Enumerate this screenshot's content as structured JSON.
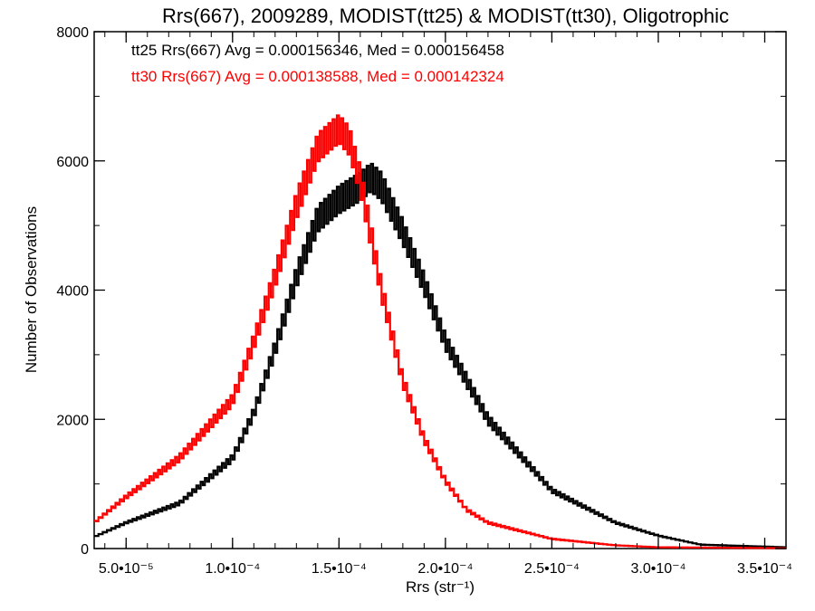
{
  "chart_data": {
    "type": "histogram",
    "title": "Rrs(667), 2009289, MODIST(tt25) & MODIST(tt30), Oligotrophic",
    "xlabel": "Rrs (str⁻¹)",
    "ylabel": "Number of Observations",
    "xlim": [
      3.5e-05,
      0.00036
    ],
    "ylim": [
      0,
      8000
    ],
    "x_ticks": [
      {
        "value": 5e-05,
        "label": "5.0•10⁻⁵"
      },
      {
        "value": 0.0001,
        "label": "1.0•10⁻⁴"
      },
      {
        "value": 0.00015,
        "label": "1.5•10⁻⁴"
      },
      {
        "value": 0.0002,
        "label": "2.0•10⁻⁴"
      },
      {
        "value": 0.00025,
        "label": "2.5•10⁻⁴"
      },
      {
        "value": 0.0003,
        "label": "3.0•10⁻⁴"
      },
      {
        "value": 0.00035,
        "label": "3.5•10⁻⁴"
      }
    ],
    "y_ticks": [
      {
        "value": 0,
        "label": "0"
      },
      {
        "value": 2000,
        "label": "2000"
      },
      {
        "value": 4000,
        "label": "4000"
      },
      {
        "value": 6000,
        "label": "6000"
      },
      {
        "value": 8000,
        "label": "8000"
      }
    ],
    "grid": false,
    "annotations": [
      {
        "text": "tt25 Rrs(667) Avg = 0.000156346, Med = 0.000156458",
        "color": "#000000"
      },
      {
        "text": "tt30 Rrs(667) Avg = 0.000138588, Med = 0.000142324",
        "color": "#ff0000"
      }
    ],
    "series": [
      {
        "color": "#000000",
        "x": [
          3.5e-05,
          5e-05,
          7.5e-05,
          0.0001,
          0.00011,
          0.00012,
          0.00013,
          0.00014,
          0.00015,
          0.00016,
          0.000165,
          0.00017,
          0.00018,
          0.00019,
          0.0002,
          0.00022,
          0.00025,
          0.00028,
          0.0003,
          0.00032,
          0.00036
        ],
        "y": [
          180,
          400,
          700,
          1400,
          2100,
          3100,
          4200,
          5100,
          5400,
          5600,
          5750,
          5600,
          4900,
          4100,
          3200,
          2000,
          900,
          400,
          200,
          60,
          20
        ]
      },
      {
        "color": "#ff0000",
        "x": [
          3.5e-05,
          5e-05,
          7.5e-05,
          0.0001,
          0.00011,
          0.00012,
          0.00013,
          0.00014,
          0.00015,
          0.000155,
          0.00016,
          0.00017,
          0.000175,
          0.00018,
          0.00019,
          0.0002,
          0.00021,
          0.00022,
          0.00025,
          0.00028,
          0.0003,
          0.00036
        ],
        "y": [
          400,
          800,
          1400,
          2300,
          3200,
          4200,
          5300,
          6200,
          6500,
          6300,
          5700,
          4000,
          3300,
          2600,
          1700,
          1050,
          600,
          400,
          150,
          50,
          20,
          5
        ]
      }
    ]
  }
}
